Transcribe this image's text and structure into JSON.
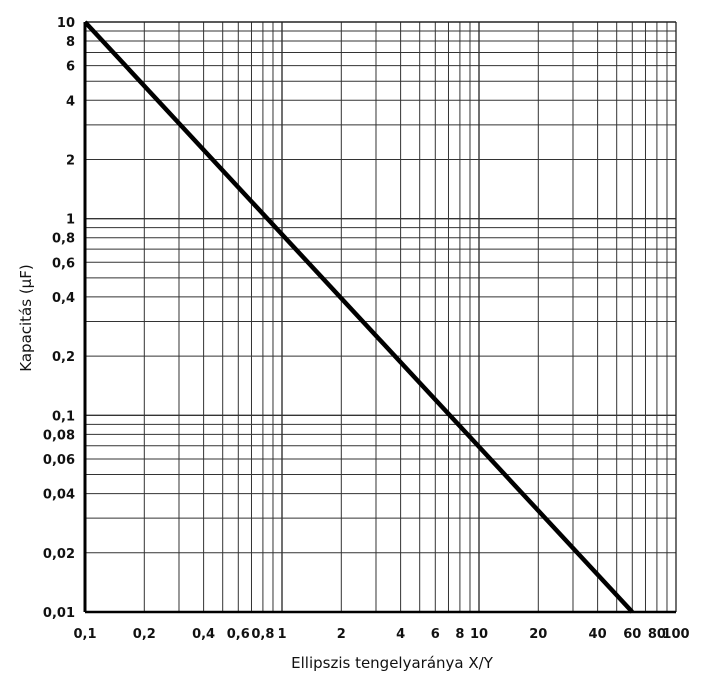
{
  "chart_data": {
    "type": "line",
    "title": "",
    "xlabel": "Ellipszis tengelyaránya X/Y",
    "ylabel": "Kapacitás (μF)",
    "xscale": "log",
    "yscale": "log",
    "xlim": [
      0.1,
      100
    ],
    "ylim": [
      0.01,
      10
    ],
    "grid": true,
    "xticks": [
      0.1,
      0.2,
      0.4,
      0.6,
      0.8,
      1,
      2,
      4,
      6,
      8,
      10,
      20,
      40,
      60,
      80,
      100
    ],
    "xtick_labels": [
      "0,1",
      "0,2",
      "0,4",
      "0,6",
      "0,8",
      "1",
      "2",
      "4",
      "6",
      "8",
      "10",
      "20",
      "40",
      "60",
      "80",
      "100"
    ],
    "yticks": [
      10,
      8,
      6,
      4,
      2,
      1,
      0.8,
      0.6,
      0.4,
      0.2,
      0.1,
      0.08,
      0.06,
      0.04,
      0.02,
      0.01
    ],
    "ytick_labels": [
      "10",
      "8",
      "6",
      "4",
      "2",
      "1",
      "0,8",
      "0,6",
      "0,4",
      "0,2",
      "0,1",
      "0,08",
      "0,06",
      "0,04",
      "0,02",
      "0,01"
    ],
    "series": [
      {
        "name": "Kapacitás",
        "x": [
          0.1,
          60
        ],
        "y": [
          10,
          0.01
        ],
        "color": "#000000"
      }
    ]
  }
}
